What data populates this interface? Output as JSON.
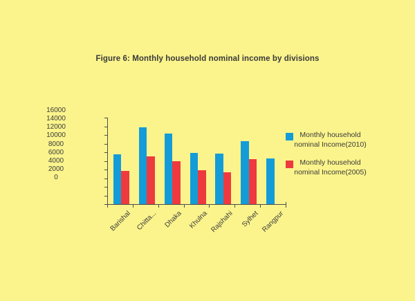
{
  "title": "Figure 6: Monthly household nominal income by divisions",
  "colors": {
    "background": "#FBF48C",
    "bar_2010": "#149CD8",
    "bar_2005": "#EE3A3E",
    "axis": "#4d4d4d",
    "text": "#3a3a3a"
  },
  "chart_data": {
    "type": "bar",
    "title": "Figure 6: Monthly household nominal income by divisions",
    "categories": [
      "Barishal",
      "Chitta...",
      "Dhaka",
      "Khulna",
      "Rajshahi",
      "Sylhet",
      "Rangpur"
    ],
    "series": [
      {
        "name": "Monthly household nominal Income(2010)",
        "color": "#149CD8",
        "values": [
          9200,
          14200,
          13100,
          9500,
          9300,
          11600,
          8400
        ]
      },
      {
        "name": "Monthly household nominal Income(2005)",
        "color": "#EE3A3E",
        "values": [
          6100,
          8800,
          7900,
          6300,
          5900,
          8300,
          null
        ]
      }
    ],
    "xlabel": "",
    "ylabel": "",
    "ylim": [
      0,
      16000
    ],
    "y_axis_ticks": [
      "16000",
      "14000",
      "12000",
      "10000",
      "8000",
      "6000",
      "4000",
      "2000",
      "0"
    ],
    "grid": false,
    "legend_position": "right",
    "legend": [
      {
        "line1": "Monthly household",
        "line2": "nominal Income(2010)",
        "color": "#149CD8"
      },
      {
        "line1": "Monthly household",
        "line2": "nominal Income(2005)",
        "color": "#EE3A3E"
      }
    ]
  }
}
